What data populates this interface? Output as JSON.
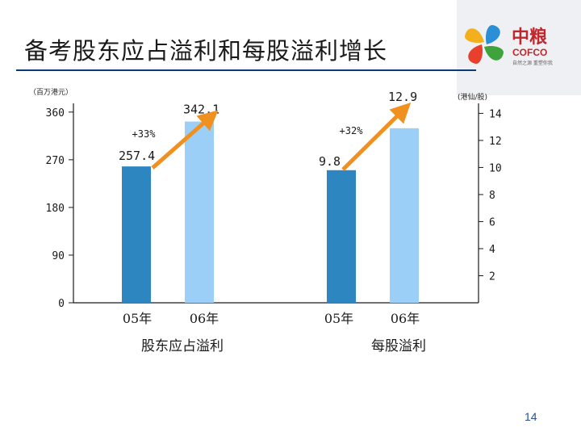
{
  "slide": {
    "title": "备考股东应占溢利和每股溢利增长",
    "page_number": "14"
  },
  "logo": {
    "brand_cn": "中粮",
    "brand_en": "COFCO",
    "tagline": "自然之源 重塑你我"
  },
  "chart_data": [
    {
      "type": "bar",
      "y_unit_label": "（百万港元）",
      "yticks": [
        0,
        90,
        180,
        270,
        360
      ],
      "ylim": [
        0,
        378
      ],
      "categories": [
        "05年",
        "06年"
      ],
      "values": [
        257.4,
        342.1
      ],
      "value_labels": [
        "257.4",
        "342.1"
      ],
      "group_label": "股东应占溢利",
      "growth_label": "+33%",
      "colors": [
        "#2e86c1",
        "#9ccff7"
      ]
    },
    {
      "type": "bar",
      "y_unit_label": "(港仙/股)",
      "yticks": [
        2,
        4,
        6,
        8,
        10,
        12,
        14
      ],
      "ylim": [
        0,
        14.8
      ],
      "categories": [
        "05年",
        "06年"
      ],
      "values": [
        9.8,
        12.9
      ],
      "value_labels": [
        "9.8",
        "12.9"
      ],
      "group_label": "每股溢利",
      "growth_label": "+32%",
      "colors": [
        "#2e86c1",
        "#9ccff7"
      ]
    }
  ],
  "colors": {
    "title_rule": "#0a3a78",
    "arrow": "#f0901e",
    "bar_dark": "#2e86c1",
    "bar_light": "#9ccff7"
  }
}
